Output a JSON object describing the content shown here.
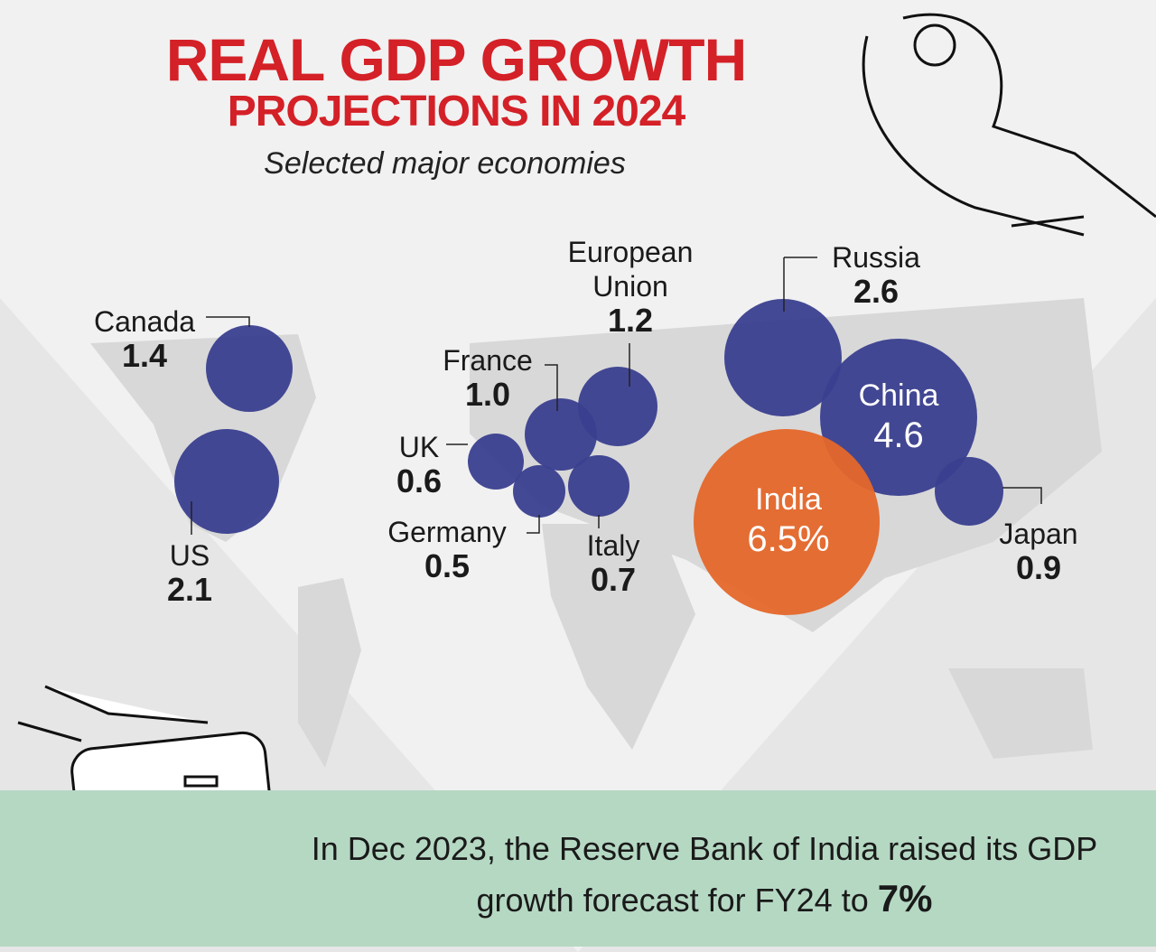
{
  "chart_data": {
    "type": "bubble-map",
    "title": "REAL GDP GROWTH PROJECTIONS IN 2024",
    "subtitle": "Selected major economies",
    "unit": "%",
    "points": [
      {
        "name": "Canada",
        "value": "1.4",
        "color": "#3a3f8f"
      },
      {
        "name": "US",
        "value": "2.1",
        "color": "#3a3f8f"
      },
      {
        "name": "UK",
        "value": "0.6",
        "color": "#3a3f8f"
      },
      {
        "name": "Germany",
        "value": "0.5",
        "color": "#3a3f8f"
      },
      {
        "name": "France",
        "value": "1.0",
        "color": "#3a3f8f"
      },
      {
        "name": "Italy",
        "value": "0.7",
        "color": "#3a3f8f"
      },
      {
        "name": "European Union",
        "value": "1.2",
        "color": "#3a3f8f"
      },
      {
        "name": "Russia",
        "value": "2.6",
        "color": "#3a3f8f"
      },
      {
        "name": "China",
        "value": "4.6",
        "color": "#3a3f8f"
      },
      {
        "name": "Japan",
        "value": "0.9",
        "color": "#3a3f8f"
      },
      {
        "name": "India",
        "value": "6.5%",
        "color": "#e5672a"
      }
    ]
  },
  "title_line1": "REAL GDP GROWTH",
  "title_line2": "PROJECTIONS IN 2024",
  "footer": {
    "text": "In Dec 2023, the Reserve Bank of India raised its GDP growth forecast for FY24 to",
    "highlight": "7%"
  }
}
